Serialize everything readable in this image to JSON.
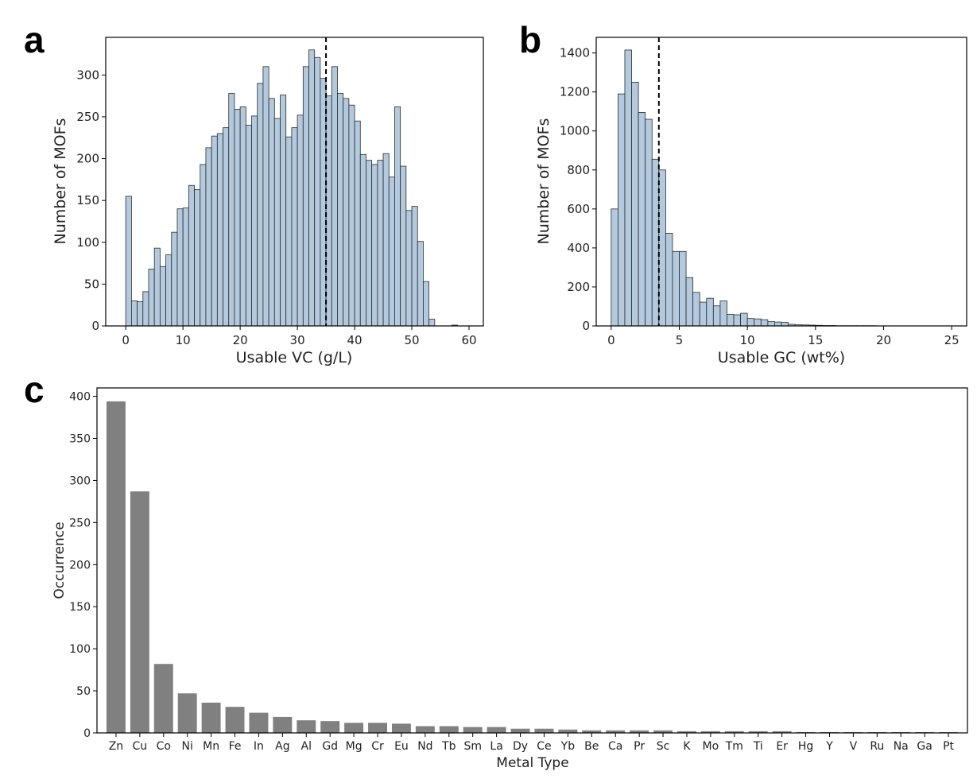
{
  "chart_data": [
    {
      "panel": "a",
      "type": "bar",
      "xlabel": "Usable VC  (g/L)",
      "ylabel": "Number of MOFs",
      "xlim": [
        -3.5,
        62.5
      ],
      "ylim": [
        0,
        345
      ],
      "xticks": [
        "0",
        "10",
        "20",
        "30",
        "40",
        "50",
        "60"
      ],
      "yticks": [
        "0",
        "50",
        "100",
        "150",
        "200",
        "250",
        "300"
      ],
      "bin_start": 0,
      "bin_width": 1,
      "values": [
        155,
        30,
        29,
        41,
        68,
        93,
        71,
        85,
        112,
        140,
        141,
        168,
        163,
        193,
        213,
        227,
        230,
        237,
        278,
        259,
        262,
        240,
        251,
        290,
        310,
        272,
        248,
        276,
        226,
        237,
        252,
        310,
        330,
        321,
        296,
        275,
        310,
        278,
        272,
        264,
        245,
        205,
        198,
        193,
        198,
        206,
        178,
        262,
        191,
        138,
        143,
        101,
        53,
        8,
        0,
        0,
        0,
        1,
        0,
        0
      ],
      "fill_color": "#b3c9dd",
      "edge_color": "#2b2b2b",
      "vline": 35,
      "grid": false
    },
    {
      "panel": "b",
      "type": "bar",
      "xlabel": "Usable GC (wt%)",
      "ylabel": "Number of MOFs",
      "xlim": [
        -1.1,
        26.1
      ],
      "ylim": [
        0,
        1480
      ],
      "xticks": [
        "0",
        "5",
        "10",
        "15",
        "20",
        "25"
      ],
      "yticks": [
        "0",
        "200",
        "400",
        "600",
        "800",
        "1000",
        "1200",
        "1400"
      ],
      "bin_start": 0,
      "bin_width": 0.5,
      "values": [
        600,
        1190,
        1415,
        1250,
        1095,
        1060,
        855,
        800,
        475,
        382,
        382,
        248,
        172,
        122,
        142,
        103,
        128,
        59,
        57,
        65,
        38,
        36,
        32,
        22,
        20,
        18,
        8,
        6,
        5,
        4,
        3,
        2,
        2,
        1,
        1,
        1,
        1,
        1,
        1,
        0,
        0,
        0,
        0,
        0,
        0,
        0,
        0,
        0,
        0,
        0
      ],
      "fill_color": "#b3c9dd",
      "edge_color": "#2b2b2b",
      "vline": 3.5,
      "grid": false
    },
    {
      "panel": "c",
      "type": "bar",
      "xlabel": "Metal Type",
      "ylabel": "Occurrence",
      "ylim": [
        0,
        410
      ],
      "yticks": [
        "0",
        "50",
        "100",
        "150",
        "200",
        "250",
        "300",
        "350",
        "400"
      ],
      "categories": [
        "Zn",
        "Cu",
        "Co",
        "Ni",
        "Mn",
        "Fe",
        "In",
        "Ag",
        "Al",
        "Gd",
        "Mg",
        "Cr",
        "Eu",
        "Nd",
        "Tb",
        "Sm",
        "La",
        "Dy",
        "Ce",
        "Yb",
        "Be",
        "Ca",
        "Pr",
        "Sc",
        "K",
        "Mo",
        "Tm",
        "Ti",
        "Er",
        "Hg",
        "Y",
        "V",
        "Ru",
        "Na",
        "Ga",
        "Pt"
      ],
      "values": [
        394,
        287,
        82,
        47,
        36,
        31,
        24,
        19,
        15,
        14,
        12,
        12,
        11,
        8,
        8,
        7,
        7,
        5,
        5,
        4,
        3,
        3,
        3,
        3,
        2,
        2,
        2,
        2,
        2,
        1,
        1,
        1,
        1,
        1,
        1,
        1
      ],
      "bar_color": "#808080",
      "grid": false
    }
  ]
}
